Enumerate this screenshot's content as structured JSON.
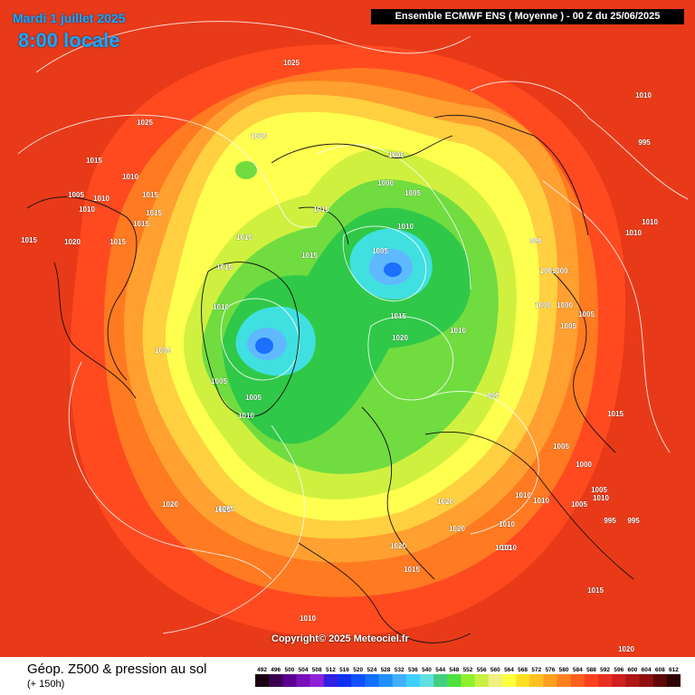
{
  "header": {
    "date": "Mardi 1 juillet 2025",
    "time": "8:00 locale",
    "model": "Ensemble ECMWF ENS  ( Moyenne )  -  00 Z du 25/06/2025"
  },
  "copyright": "Copyright© 2025 Meteociel.fr",
  "footer": {
    "title": "Géop. Z500 & pression au sol",
    "subtitle": "(+ 150h)"
  },
  "legend": {
    "values": [
      "492",
      "496",
      "500",
      "504",
      "508",
      "512",
      "516",
      "520",
      "524",
      "528",
      "532",
      "536",
      "540",
      "544",
      "548",
      "552",
      "556",
      "560",
      "564",
      "568",
      "572",
      "576",
      "580",
      "584",
      "588",
      "592",
      "596",
      "600",
      "604",
      "608",
      "612"
    ],
    "colors": [
      "#1a0010",
      "#3a0050",
      "#5a0090",
      "#7a10b8",
      "#9020d8",
      "#3020e0",
      "#1030f0",
      "#1050ff",
      "#1070ff",
      "#2090ff",
      "#40b0ff",
      "#40d0ff",
      "#60e0e0",
      "#40d080",
      "#50e040",
      "#90f030",
      "#c8f040",
      "#f0f080",
      "#ffff40",
      "#ffe020",
      "#ffc020",
      "#ffa020",
      "#ff8020",
      "#ff6020",
      "#ff4020",
      "#e83020",
      "#d02020",
      "#b01818",
      "#901010",
      "#600808",
      "#300404"
    ]
  },
  "pressure_labels": [
    "1025",
    "1025",
    "1020",
    "1015",
    "1010",
    "1005",
    "1010",
    "1010",
    "1015",
    "1015",
    "1015",
    "1020",
    "1015",
    "1025",
    "1015",
    "1015",
    "1015",
    "1015",
    "1015",
    "1010",
    "1005",
    "1005",
    "1005",
    "1000",
    "1000",
    "1005",
    "1010",
    "1005",
    "995",
    "1001000",
    "1000",
    "1000",
    "1005",
    "1010",
    "1015",
    "1020",
    "1010",
    "995",
    "1005",
    "1010",
    "1010",
    "1005",
    "1010",
    "1020",
    "1020",
    "1020",
    "1010",
    "1010",
    "1015",
    "1010",
    "1020",
    "1025",
    "1015",
    "1010",
    "995",
    "1000",
    "995",
    "1005",
    "1010",
    "1010",
    "1015",
    "1020",
    "995",
    "1010",
    "1005"
  ],
  "map_colors": {
    "ocean_outer": "#e83a18",
    "band_red": "#ff4a20",
    "band_orange": "#ff7a20",
    "band_amber": "#ffa030",
    "band_yellow_orange": "#ffd040",
    "band_yellow": "#ffff50",
    "band_lime": "#d0f040",
    "band_green": "#70dc40",
    "band_green_dark": "#30c848",
    "band_cyan": "#40e0e0",
    "band_light_blue": "#60b8ff",
    "band_blue": "#1a70ff"
  }
}
